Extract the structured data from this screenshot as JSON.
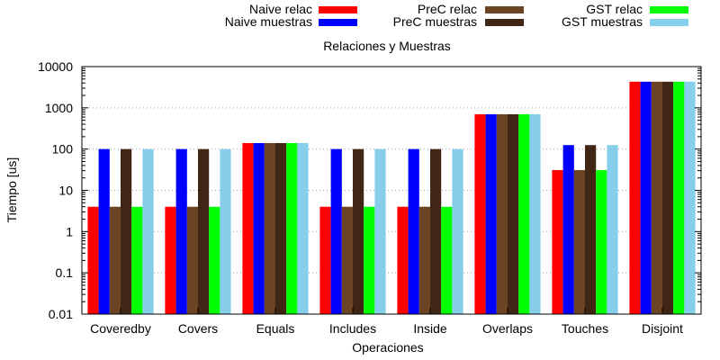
{
  "chart_data": {
    "type": "bar",
    "title": "Relaciones y Muestras",
    "xlabel": "Operaciones",
    "ylabel": "Tiempo [us]",
    "yscale": "log",
    "ylim": [
      0.01,
      10000
    ],
    "yticks": [
      "0.01",
      "0.1",
      "1",
      "10",
      "100",
      "1000",
      "10000"
    ],
    "grid": "y-dotted",
    "legend_position": "top",
    "categories": [
      "Coveredby",
      "Covers",
      "Equals",
      "Includes",
      "Inside",
      "Overlaps",
      "Touches",
      "Disjoint"
    ],
    "series": [
      {
        "name": "Naive relac",
        "color": "#ff0000",
        "values": [
          4,
          4,
          140,
          4,
          4,
          700,
          31,
          4300
        ]
      },
      {
        "name": "Naive muestras",
        "color": "#0000ff",
        "values": [
          100,
          100,
          140,
          100,
          100,
          700,
          125,
          4300
        ]
      },
      {
        "name": "PreC relac",
        "color": "#6b4423",
        "values": [
          4,
          4,
          140,
          4,
          4,
          700,
          31,
          4300
        ]
      },
      {
        "name": "PreC muestras",
        "color": "#3f2615",
        "values": [
          100,
          100,
          140,
          100,
          100,
          700,
          125,
          4300
        ]
      },
      {
        "name": "GST relac",
        "color": "#00ff00",
        "values": [
          4,
          4,
          140,
          4,
          4,
          700,
          31,
          4300
        ]
      },
      {
        "name": "GST muestras",
        "color": "#87ceeb",
        "values": [
          100,
          100,
          140,
          100,
          100,
          700,
          125,
          4300
        ]
      }
    ]
  }
}
